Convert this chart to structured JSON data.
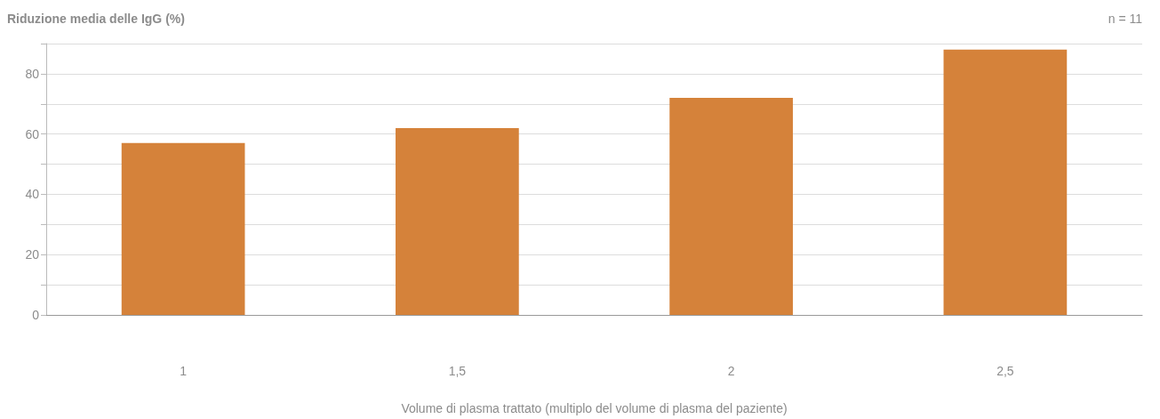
{
  "chart_data": {
    "type": "bar",
    "ylabel": "Riduzione media delle IgG (%)",
    "xlabel": "Volume di plasma trattato (multiplo del volume di plasma del paziente)",
    "annotations": [
      "n = 11"
    ],
    "categories": [
      "1",
      "1,5",
      "2",
      "2,5"
    ],
    "values": [
      57,
      62,
      72,
      88
    ],
    "color": "#d5823a",
    "ylim": [
      0,
      90
    ],
    "yticks": [
      0,
      {
        "value": 10,
        "label": null
      },
      20,
      {
        "value": 30,
        "label": null
      },
      40,
      {
        "value": 50,
        "label": null
      },
      60,
      {
        "value": 70,
        "label": null
      },
      80,
      {
        "value": 90,
        "label": null
      }
    ],
    "grid": true
  }
}
